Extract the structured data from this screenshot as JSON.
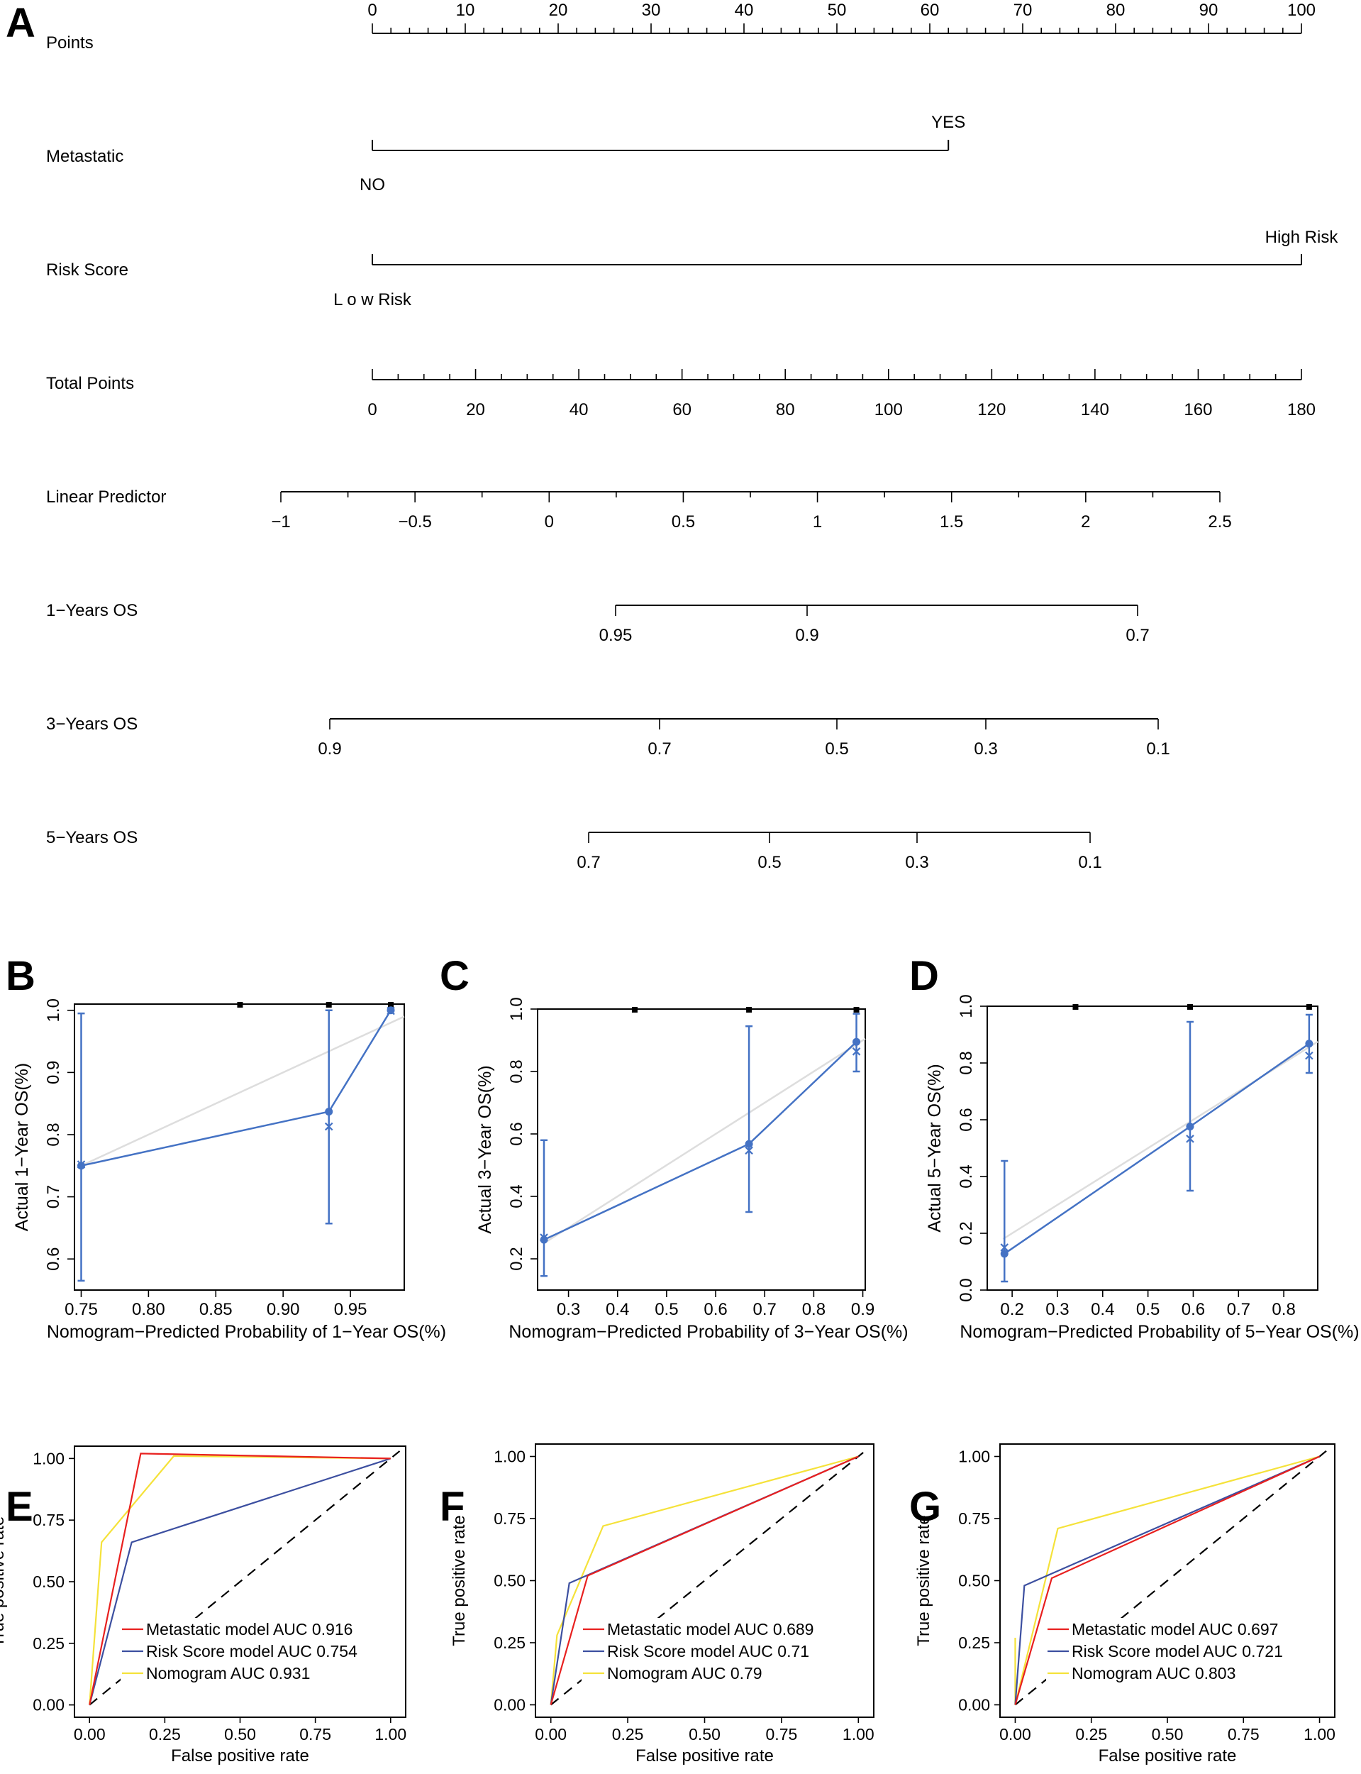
{
  "colors": {
    "calibration": "#4472c4",
    "ideal_line": "#dddddd",
    "roc_metastatic": "#e8201f",
    "roc_riskscore": "#3c4fa0",
    "roc_nomogram": "#f5e23a"
  },
  "chart_data": [
    {
      "panel": "A",
      "type": "nomogram",
      "rows": [
        {
          "label": "Points",
          "kind": "axis",
          "tick_labels": [
            "0",
            "10",
            "20",
            "30",
            "40",
            "50",
            "60",
            "70",
            "80",
            "90",
            "100"
          ]
        },
        {
          "label": "Metastatic",
          "kind": "category",
          "values": [
            {
              "label": "NO",
              "points": 0
            },
            {
              "label": "YES",
              "points": 62
            }
          ]
        },
        {
          "label": "Risk Score",
          "kind": "category",
          "values": [
            {
              "label": "L o w Risk",
              "points": 0
            },
            {
              "label": "High Risk",
              "points": 100
            }
          ]
        },
        {
          "label": "Total Points",
          "kind": "axis",
          "tick_labels": [
            "0",
            "20",
            "40",
            "60",
            "80",
            "100",
            "120",
            "140",
            "160",
            "180"
          ]
        },
        {
          "label": "Linear Predictor",
          "kind": "axis",
          "tick_labels": [
            "−1",
            "−0.5",
            "0",
            "0.5",
            "1",
            "1.5",
            "2",
            "2.5"
          ]
        },
        {
          "label": "1−Years OS",
          "kind": "axis",
          "tick_labels": [
            "0.95",
            "0.9",
            "0.7"
          ]
        },
        {
          "label": "3−Years OS",
          "kind": "axis",
          "tick_labels": [
            "0.9",
            "0.7",
            "0.5",
            "0.3",
            "0.1"
          ]
        },
        {
          "label": "5−Years OS",
          "kind": "axis",
          "tick_labels": [
            "0.7",
            "0.5",
            "0.3",
            "0.1"
          ]
        }
      ]
    },
    {
      "panel": "B",
      "type": "scatter",
      "xlabel": "Nomogram−Predicted Probability of 1−Year OS(%)",
      "ylabel": "Actual 1−Year OS(%)",
      "xlim": [
        0.745,
        0.99
      ],
      "ylim": [
        0.55,
        1.01
      ],
      "xticks": [
        "0.75",
        "0.80",
        "0.85",
        "0.90",
        "0.95"
      ],
      "yticks": [
        "0.6",
        "0.7",
        "0.8",
        "0.9",
        "1.0"
      ],
      "ideal_line": [
        [
          0.75,
          0.75
        ],
        [
          0.99,
          0.99
        ]
      ],
      "observed": [
        {
          "x": 0.75,
          "y": 0.75,
          "lower": 0.565,
          "upper": 0.995
        },
        {
          "x": 0.934,
          "y": 0.837,
          "lower": 0.657,
          "upper": 1.0
        },
        {
          "x": 0.98,
          "y": 1.0
        }
      ],
      "bias_corrected": [
        {
          "x": 0.75,
          "y": 0.752
        },
        {
          "x": 0.934,
          "y": 0.813
        },
        {
          "x": 0.98,
          "y": 0.999
        }
      ],
      "rug": [
        0.868,
        0.934,
        0.98
      ]
    },
    {
      "panel": "C",
      "type": "scatter",
      "xlabel": "Nomogram−Predicted Probability of 3−Year OS(%)",
      "ylabel": "Actual 3−Year OS(%)",
      "xlim": [
        0.237,
        0.905
      ],
      "ylim": [
        0.1,
        1.0
      ],
      "xticks": [
        "0.3",
        "0.4",
        "0.5",
        "0.6",
        "0.7",
        "0.8",
        "0.9"
      ],
      "yticks": [
        "0.2",
        "0.4",
        "0.6",
        "0.8",
        "1.0"
      ],
      "ideal_line": [
        [
          0.25,
          0.25
        ],
        [
          0.905,
          0.905
        ]
      ],
      "observed": [
        {
          "x": 0.25,
          "y": 0.261,
          "lower": 0.145,
          "upper": 0.58
        },
        {
          "x": 0.668,
          "y": 0.568,
          "lower": 0.35,
          "upper": 0.945
        },
        {
          "x": 0.887,
          "y": 0.895,
          "lower": 0.8,
          "upper": 0.985
        }
      ],
      "bias_corrected": [
        {
          "x": 0.25,
          "y": 0.268
        },
        {
          "x": 0.668,
          "y": 0.547
        },
        {
          "x": 0.887,
          "y": 0.864
        }
      ],
      "rug": [
        0.435,
        0.668,
        0.887
      ]
    },
    {
      "panel": "D",
      "type": "scatter",
      "xlabel": "Nomogram−Predicted Probability of 5−Year OS(%)",
      "ylabel": "Actual 5−Year OS(%)",
      "xlim": [
        0.145,
        0.875
      ],
      "ylim": [
        0.0,
        1.0
      ],
      "xticks": [
        "0.2",
        "0.3",
        "0.4",
        "0.5",
        "0.6",
        "0.7",
        "0.8"
      ],
      "yticks": [
        "0.0",
        "0.2",
        "0.4",
        "0.6",
        "0.8",
        "1.0"
      ],
      "ideal_line": [
        [
          0.18,
          0.18
        ],
        [
          0.875,
          0.875
        ]
      ],
      "observed": [
        {
          "x": 0.183,
          "y": 0.128,
          "lower": 0.03,
          "upper": 0.455
        },
        {
          "x": 0.593,
          "y": 0.576,
          "lower": 0.35,
          "upper": 0.945
        },
        {
          "x": 0.856,
          "y": 0.868,
          "lower": 0.765,
          "upper": 0.97
        }
      ],
      "bias_corrected": [
        {
          "x": 0.183,
          "y": 0.15
        },
        {
          "x": 0.593,
          "y": 0.533
        },
        {
          "x": 0.856,
          "y": 0.826
        }
      ],
      "rug": [
        0.34,
        0.593,
        0.856
      ]
    },
    {
      "panel": "E",
      "type": "line",
      "xlabel": "False positive rate",
      "ylabel": "True positive rate",
      "xlim": [
        -0.05,
        1.05
      ],
      "ylim": [
        -0.05,
        1.05
      ],
      "xticks": [
        "0.00",
        "0.25",
        "0.50",
        "0.75",
        "1.00"
      ],
      "yticks": [
        "0.00",
        "0.25",
        "0.50",
        "0.75",
        "1.00"
      ],
      "series": [
        {
          "name": "Metastatic model AUC 0.916",
          "points": [
            [
              0,
              0
            ],
            [
              0.17,
              1.02
            ],
            [
              1,
              1
            ]
          ]
        },
        {
          "name": "Risk Score model AUC 0.754",
          "points": [
            [
              0,
              0
            ],
            [
              0.14,
              0.66
            ],
            [
              1,
              1
            ]
          ]
        },
        {
          "name": "Nomogram AUC 0.931",
          "points": [
            [
              0,
              0
            ],
            [
              0.04,
              0.66
            ],
            [
              0.28,
              1.01
            ],
            [
              1,
              1
            ]
          ]
        }
      ],
      "legend": "bottom-right"
    },
    {
      "panel": "F",
      "type": "line",
      "xlabel": "False positive rate",
      "ylabel": "True positive rate",
      "xlim": [
        -0.05,
        1.05
      ],
      "ylim": [
        -0.05,
        1.05
      ],
      "xticks": [
        "0.00",
        "0.25",
        "0.50",
        "0.75",
        "1.00"
      ],
      "yticks": [
        "0.00",
        "0.25",
        "0.50",
        "0.75",
        "1.00"
      ],
      "series": [
        {
          "name": "Metastatic model AUC 0.689",
          "points": [
            [
              0,
              0
            ],
            [
              0.12,
              0.52
            ],
            [
              1,
              1
            ]
          ]
        },
        {
          "name": "Risk Score model AUC 0.71",
          "points": [
            [
              0,
              0
            ],
            [
              0.06,
              0.49
            ],
            [
              1,
              1
            ]
          ]
        },
        {
          "name": "Nomogram AUC 0.79",
          "points": [
            [
              0,
              0
            ],
            [
              0.02,
              0.28
            ],
            [
              0.17,
              0.72
            ],
            [
              1,
              1
            ]
          ]
        }
      ],
      "legend": "bottom-right"
    },
    {
      "panel": "G",
      "type": "line",
      "xlabel": "False positive rate",
      "ylabel": "True positive rate",
      "xlim": [
        -0.05,
        1.05
      ],
      "ylim": [
        -0.05,
        1.05
      ],
      "xticks": [
        "0.00",
        "0.25",
        "0.50",
        "0.75",
        "1.00"
      ],
      "yticks": [
        "0.00",
        "0.25",
        "0.50",
        "0.75",
        "1.00"
      ],
      "series": [
        {
          "name": "Metastatic model AUC 0.697",
          "points": [
            [
              0,
              0
            ],
            [
              0.12,
              0.51
            ],
            [
              1,
              1
            ]
          ]
        },
        {
          "name": "Risk Score model AUC 0.721",
          "points": [
            [
              0,
              0
            ],
            [
              0.03,
              0.48
            ],
            [
              1,
              1
            ]
          ]
        },
        {
          "name": "Nomogram AUC 0.803",
          "points": [
            [
              0,
              0.27
            ],
            [
              0,
              0
            ],
            [
              0.14,
              0.71
            ],
            [
              1,
              1
            ]
          ]
        }
      ],
      "legend": "bottom-right"
    }
  ]
}
